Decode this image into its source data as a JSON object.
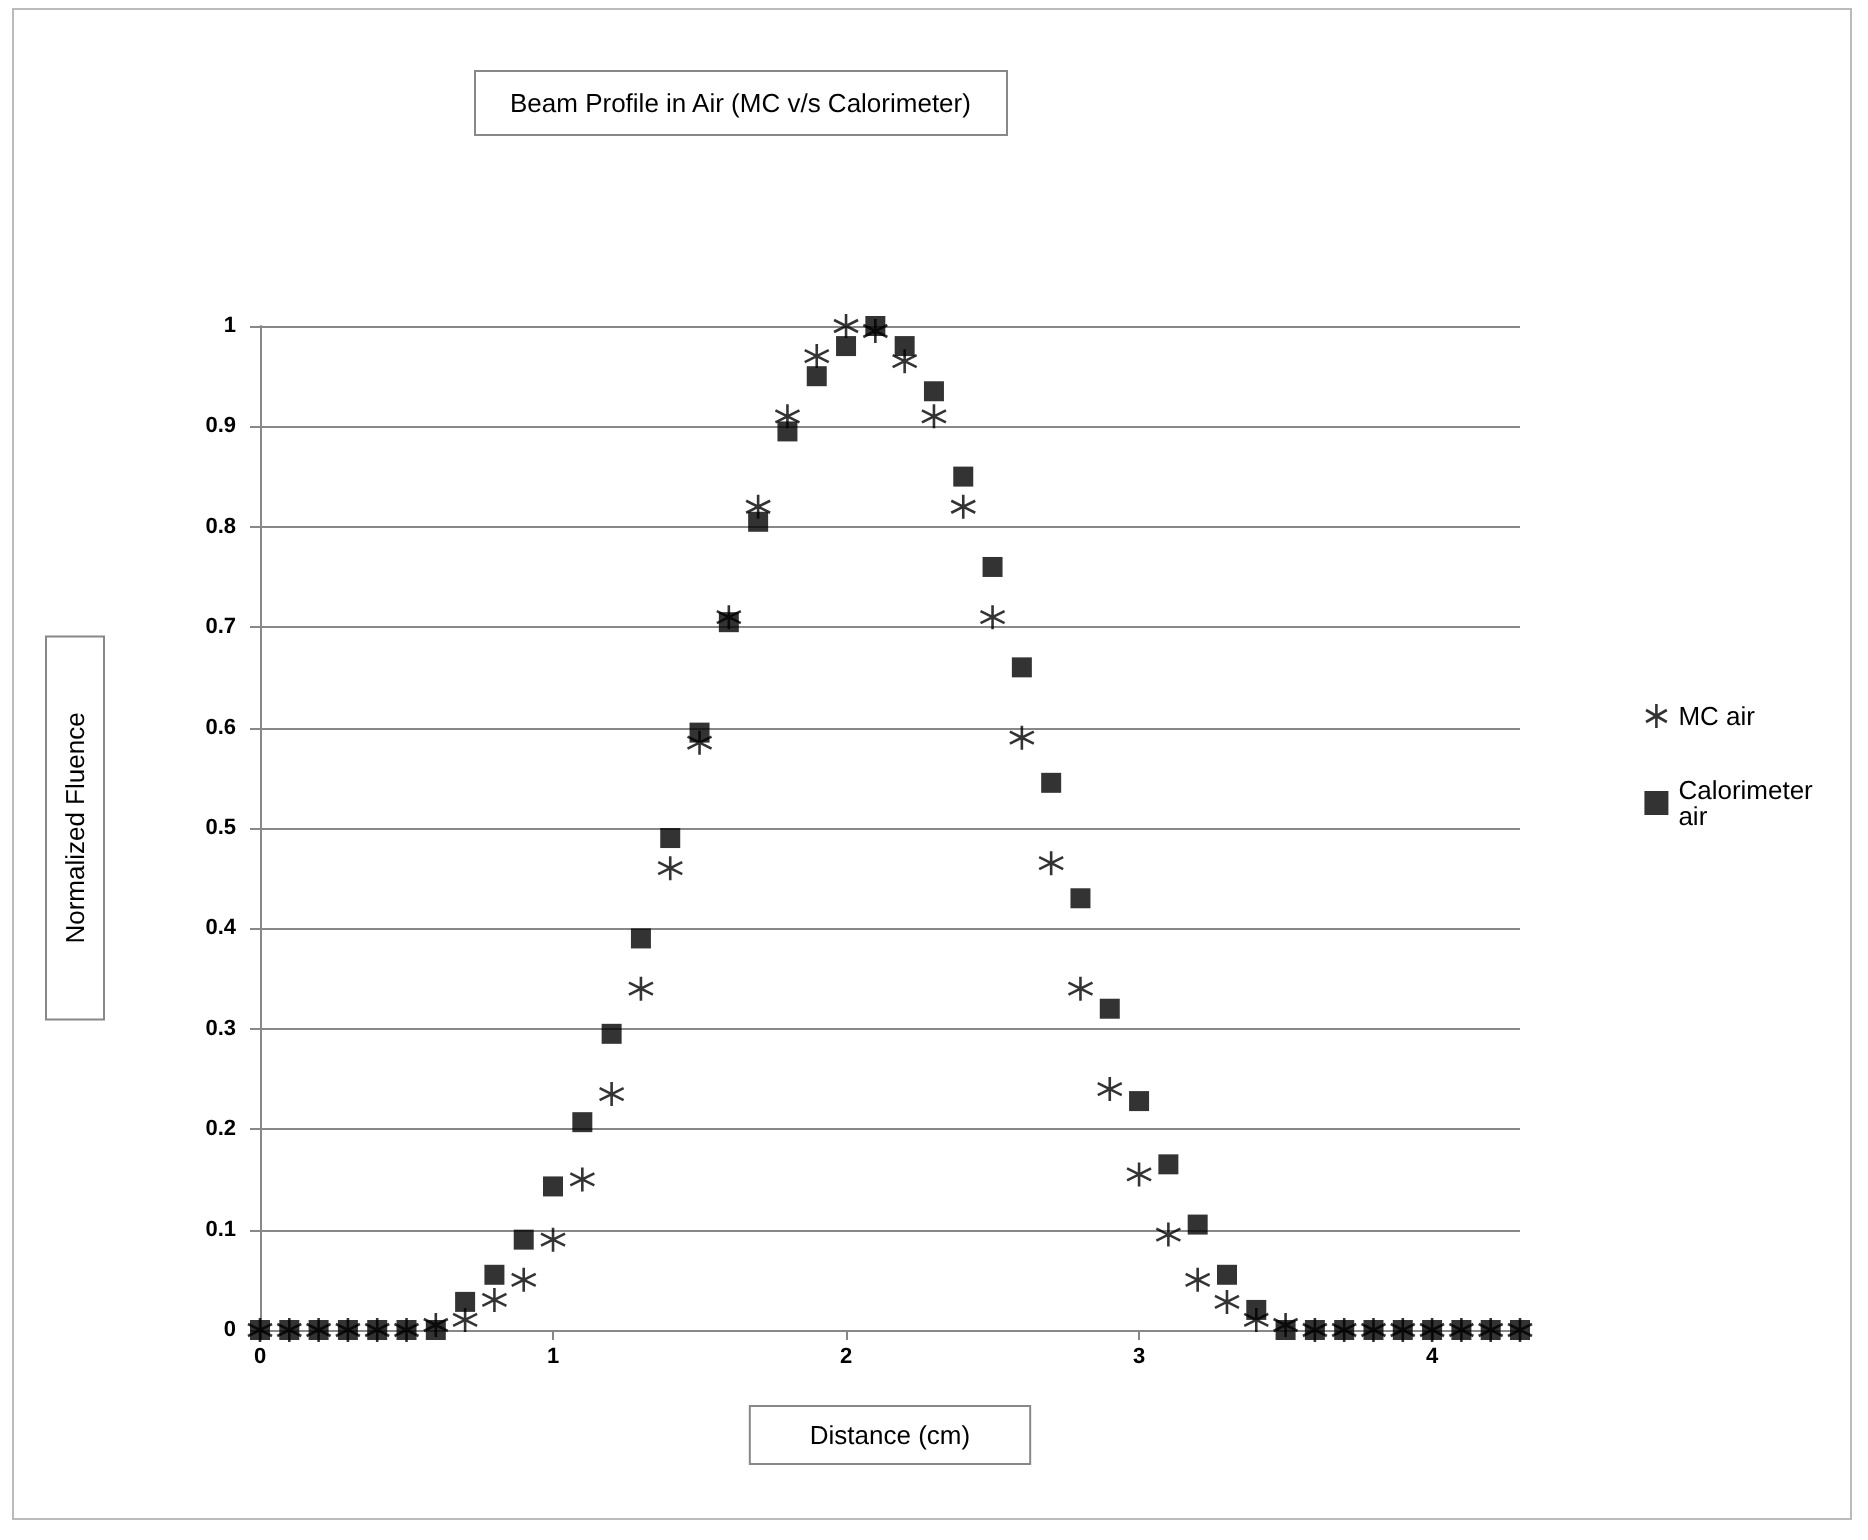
{
  "chart_data": {
    "type": "scatter",
    "title": "Beam Profile in Air (MC v/s Calorimeter)",
    "xlabel": "Distance (cm)",
    "ylabel": "Normalized Fluence",
    "x": [
      0,
      0.1,
      0.2,
      0.3,
      0.4,
      0.5,
      0.6,
      0.7,
      0.8,
      0.9,
      1.0,
      1.1,
      1.2,
      1.3,
      1.4,
      1.5,
      1.6,
      1.7,
      1.8,
      1.9,
      2.0,
      2.1,
      2.2,
      2.3,
      2.4,
      2.5,
      2.6,
      2.7,
      2.8,
      2.9,
      3.0,
      3.1,
      3.2,
      3.3,
      3.4,
      3.5,
      3.6,
      3.7,
      3.8,
      3.9,
      4.0,
      4.1,
      4.2,
      4.3
    ],
    "series": [
      {
        "name": "MC air",
        "color": "#000000",
        "marker": "cross",
        "values": [
          0,
          0,
          0,
          0,
          0,
          0,
          0.005,
          0.01,
          0.03,
          0.05,
          0.09,
          0.15,
          0.235,
          0.34,
          0.46,
          0.585,
          0.71,
          0.82,
          0.91,
          0.97,
          1.0,
          0.995,
          0.965,
          0.91,
          0.82,
          0.71,
          0.59,
          0.465,
          0.34,
          0.24,
          0.155,
          0.095,
          0.05,
          0.028,
          0.01,
          0.005,
          0,
          0,
          0,
          0,
          0,
          0,
          0,
          0
        ]
      },
      {
        "name": "Calorimeter air",
        "color": "#000000",
        "marker": "square",
        "values": [
          0,
          0,
          0,
          0,
          0,
          0,
          0,
          0.028,
          0.055,
          0.09,
          0.143,
          0.207,
          0.295,
          0.39,
          0.49,
          0.595,
          0.705,
          0.805,
          0.895,
          0.95,
          0.98,
          1.0,
          0.98,
          0.935,
          0.85,
          0.76,
          0.66,
          0.545,
          0.43,
          0.32,
          0.228,
          0.165,
          0.105,
          0.055,
          0.02,
          0,
          0,
          0,
          0,
          0,
          0,
          0,
          0,
          0
        ]
      }
    ],
    "xlim": [
      0,
      4.3
    ],
    "xticks": [
      0,
      1,
      2,
      3,
      4
    ],
    "ylim": [
      0,
      1
    ],
    "yticks": [
      0,
      0.1,
      0.2,
      0.3,
      0.4,
      0.5,
      0.6,
      0.7,
      0.8,
      0.9,
      1
    ],
    "grid": "y",
    "legend": "right"
  }
}
